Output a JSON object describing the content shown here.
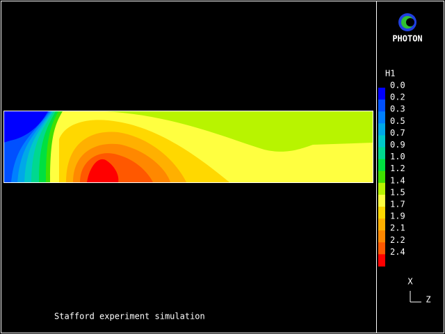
{
  "logo": {
    "label": "PHOTON"
  },
  "legend": {
    "title": "H1",
    "labels": [
      "0.0",
      "0.2",
      "0.3",
      "0.5",
      "0.7",
      "0.9",
      "1.0",
      "1.2",
      "1.4",
      "1.5",
      "1.7",
      "1.9",
      "2.1",
      "2.2",
      "2.4"
    ]
  },
  "axes": {
    "x": "X",
    "z": "Z"
  },
  "caption": "Stafford experiment simulation"
}
